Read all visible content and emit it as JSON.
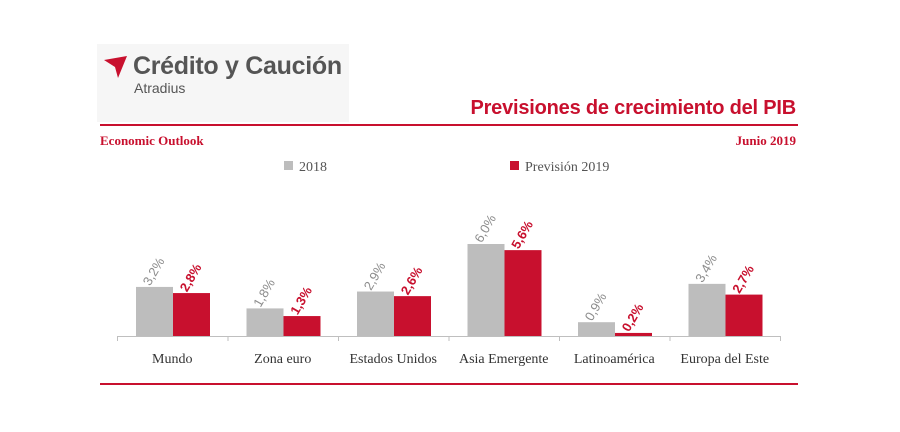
{
  "brand": {
    "name": "Crédito y Caución",
    "sub": "Atradius"
  },
  "header": {
    "title": "Previsiones de crecimiento del PIB",
    "left_label": "Economic Outlook",
    "right_label": "Junio  2019"
  },
  "colors": {
    "series_2018": "#bdbdbd",
    "series_2019": "#c8102e",
    "label_2018": "#8c8c8c",
    "label_2019": "#c8102e",
    "accent": "#c8102e"
  },
  "chart_data": {
    "type": "bar",
    "title": "Previsiones de crecimiento del PIB",
    "categories": [
      "Mundo",
      "Zona euro",
      "Estados Unidos",
      "Asia Emergente",
      "Latinoamérica",
      "Europa del Este"
    ],
    "series": [
      {
        "name": "2018",
        "values": [
          3.2,
          1.8,
          2.9,
          6.0,
          0.9,
          3.4
        ],
        "labels": [
          "3,2%",
          "1,8%",
          "2,9%",
          "6,0%",
          "0,9%",
          "3,4%"
        ]
      },
      {
        "name": "Previsión 2019",
        "values": [
          2.8,
          1.3,
          2.6,
          5.6,
          0.2,
          2.7
        ],
        "labels": [
          "2,8%",
          "1,3%",
          "2,6%",
          "5,6%",
          "0,2%",
          "2,7%"
        ]
      }
    ],
    "ylim": [
      0,
      6.0
    ],
    "xlabel": "",
    "ylabel": "",
    "legend": "top"
  }
}
